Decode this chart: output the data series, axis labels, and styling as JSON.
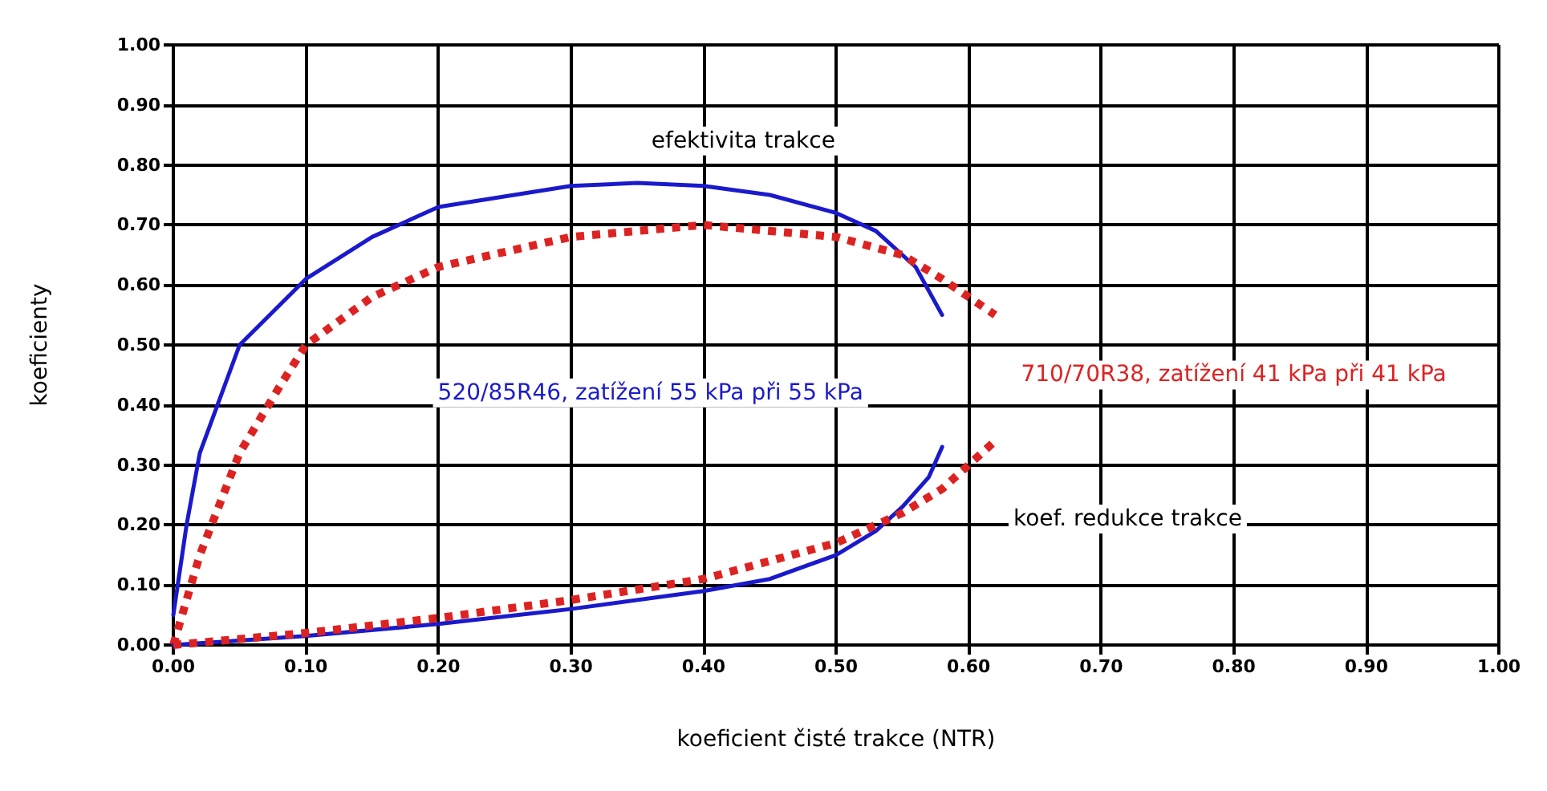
{
  "chart_data": {
    "type": "line",
    "xlabel": "koeficient čisté trakce (NTR)",
    "ylabel": "koeficienty",
    "xlim": [
      0,
      1
    ],
    "ylim": [
      0,
      1
    ],
    "xticks": [
      {
        "value": 0,
        "label": "0.00"
      },
      {
        "value": 0.1,
        "label": "0.10"
      },
      {
        "value": 0.2,
        "label": "0.20"
      },
      {
        "value": 0.3,
        "label": "0.30"
      },
      {
        "value": 0.4,
        "label": "0.40"
      },
      {
        "value": 0.5,
        "label": "0.50"
      },
      {
        "value": 0.6,
        "label": "0.60"
      },
      {
        "value": 0.7,
        "label": "0.70"
      },
      {
        "value": 0.8,
        "label": "0.80"
      },
      {
        "value": 0.9,
        "label": "0.90"
      },
      {
        "value": 1,
        "label": "1.00"
      }
    ],
    "yticks": [
      {
        "value": 0,
        "label": "0.00"
      },
      {
        "value": 0.1,
        "label": "0.10"
      },
      {
        "value": 0.2,
        "label": "0.20"
      },
      {
        "value": 0.3,
        "label": "0.30"
      },
      {
        "value": 0.4,
        "label": "0.40"
      },
      {
        "value": 0.5,
        "label": "0.50"
      },
      {
        "value": 0.6,
        "label": "0.60"
      },
      {
        "value": 0.7,
        "label": "0.70"
      },
      {
        "value": 0.8,
        "label": "0.80"
      },
      {
        "value": 0.9,
        "label": "0.90"
      },
      {
        "value": 1,
        "label": "1.00"
      }
    ],
    "grid": true,
    "legend": false,
    "marker": "none",
    "series": [
      {
        "name": "520/85R46, zatížení 55 kPa při 55 kPa",
        "color": "#1a1acc",
        "line_style": "solid",
        "x": [
          0,
          0.01,
          0.02,
          0.05,
          0.1,
          0.15,
          0.2,
          0.3,
          0.35,
          0.4,
          0.45,
          0.5,
          0.53,
          0.56,
          0.58
        ],
        "values": [
          0.05,
          0.2,
          0.32,
          0.5,
          0.61,
          0.68,
          0.73,
          0.765,
          0.77,
          0.765,
          0.75,
          0.72,
          0.69,
          0.63,
          0.55
        ]
      },
      {
        "name": "710/70R38, zatížení 41 kPa při 41 kPa",
        "color": "#dd2222",
        "line_style": "dotted",
        "x": [
          0,
          0.02,
          0.05,
          0.08,
          0.1,
          0.15,
          0.2,
          0.3,
          0.4,
          0.5,
          0.55,
          0.58,
          0.6,
          0.62
        ],
        "values": [
          0,
          0.15,
          0.32,
          0.43,
          0.5,
          0.58,
          0.63,
          0.68,
          0.7,
          0.68,
          0.65,
          0.61,
          0.58,
          0.55
        ]
      },
      {
        "color": "#1a1acc",
        "line_style": "solid",
        "x": [
          0,
          0.1,
          0.2,
          0.3,
          0.4,
          0.45,
          0.5,
          0.53,
          0.55,
          0.57,
          0.58
        ],
        "values": [
          0,
          0.015,
          0.035,
          0.06,
          0.09,
          0.11,
          0.15,
          0.19,
          0.23,
          0.28,
          0.33
        ]
      },
      {
        "color": "#dd2222",
        "line_style": "dotted",
        "x": [
          0,
          0.1,
          0.2,
          0.3,
          0.4,
          0.5,
          0.55,
          0.58,
          0.6,
          0.62
        ],
        "values": [
          0,
          0.02,
          0.045,
          0.075,
          0.11,
          0.17,
          0.22,
          0.26,
          0.3,
          0.34
        ]
      }
    ],
    "annotations": [
      "efektivita trakce",
      "koef. redukce trakce"
    ]
  }
}
